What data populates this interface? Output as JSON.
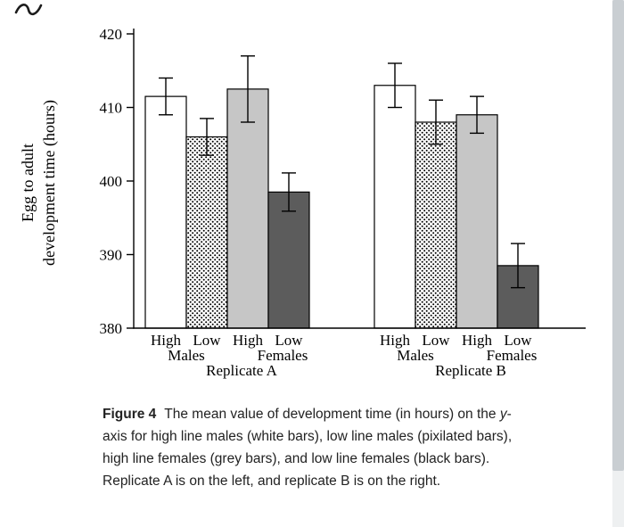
{
  "page": {
    "background": "#ffffff"
  },
  "chart_data": {
    "type": "bar",
    "ylabel_line1": "Egg to adult",
    "ylabel_line2": "development time (hours)",
    "ylim": [
      380,
      420
    ],
    "yticks": [
      380,
      390,
      400,
      410,
      420
    ],
    "grid": false,
    "legend": "none (styles described in caption)",
    "groups": [
      {
        "name": "Replicate A",
        "bars": [
          {
            "label": "High",
            "sex": "Males",
            "style": "white",
            "value": 411.5,
            "err": 2.5
          },
          {
            "label": "Low",
            "sex": "Males",
            "style": "dotted",
            "value": 406.0,
            "err": 2.5
          },
          {
            "label": "High",
            "sex": "Females",
            "style": "grey",
            "value": 412.5,
            "err": 4.5
          },
          {
            "label": "Low",
            "sex": "Females",
            "style": "dark",
            "value": 398.5,
            "err": 2.6
          }
        ]
      },
      {
        "name": "Replicate B",
        "bars": [
          {
            "label": "High",
            "sex": "Males",
            "style": "white",
            "value": 413.0,
            "err": 3.0
          },
          {
            "label": "Low",
            "sex": "Males",
            "style": "dotted",
            "value": 408.0,
            "err": 3.0
          },
          {
            "label": "High",
            "sex": "Females",
            "style": "grey",
            "value": 409.0,
            "err": 2.5
          },
          {
            "label": "Low",
            "sex": "Females",
            "style": "dark",
            "value": 388.5,
            "err": 3.0
          }
        ]
      }
    ],
    "colors": {
      "white": "#ffffff",
      "dotted_base": "#ffffff",
      "dotted_dot": "#000000",
      "grey": "#c6c6c6",
      "dark": "#5c5c5c",
      "axis": "#000000"
    }
  },
  "caption": {
    "figure_label": "Figure 4",
    "text_before_y": "The mean value of development time (in hours) on the ",
    "y_char": "y",
    "text_after_y": "-axis for high line males (white bars), low line males (pixilated bars), high line females (grey bars), and low line females (black bars). Replicate A is on the left, and replicate B is on the right."
  }
}
